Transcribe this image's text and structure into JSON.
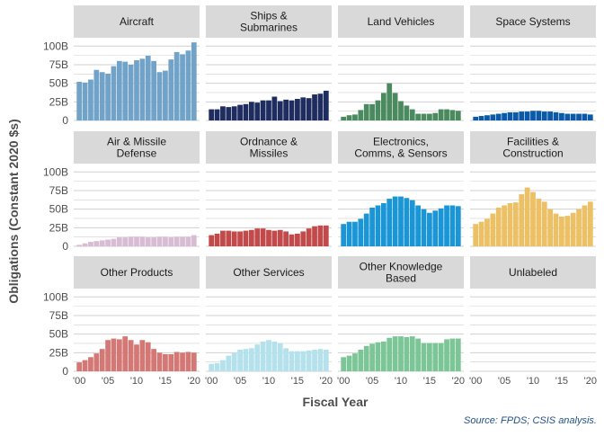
{
  "chart_data": {
    "type": "bar",
    "layout": "facet-grid-3x4",
    "ylabel": "Obligations (Constant 2020 $s)",
    "xlabel": "Fiscal Year",
    "source": "Source: FPDS; CSIS analysis.",
    "ylim": [
      0,
      110
    ],
    "y_ticks": [
      0,
      25,
      50,
      75,
      100
    ],
    "y_tick_labels": [
      "0",
      "25B",
      "50B",
      "75B",
      "100B"
    ],
    "x": [
      2000,
      2001,
      2002,
      2003,
      2004,
      2005,
      2006,
      2007,
      2008,
      2009,
      2010,
      2011,
      2012,
      2013,
      2014,
      2015,
      2016,
      2017,
      2018,
      2019,
      2020
    ],
    "x_ticks": [
      2000,
      2005,
      2010,
      2015,
      2020
    ],
    "x_tick_labels": [
      "'00",
      "'05",
      "'10",
      "'15",
      "'20"
    ],
    "grid": true,
    "facets": [
      {
        "title": [
          "Aircraft"
        ],
        "color": "#71a3c8",
        "values": [
          52,
          51,
          55,
          68,
          65,
          63,
          73,
          80,
          79,
          75,
          81,
          83,
          87,
          80,
          65,
          67,
          82,
          92,
          89,
          94,
          105
        ]
      },
      {
        "title": [
          "Ships &",
          "Submarines"
        ],
        "color": "#1e2c5f",
        "values": [
          15,
          15,
          19,
          18,
          19,
          21,
          22,
          25,
          24,
          27,
          27,
          32,
          26,
          28,
          27,
          29,
          31,
          30,
          35,
          36,
          40
        ]
      },
      {
        "title": [
          "Land Vehicles"
        ],
        "color": "#4b8a5f",
        "values": [
          5,
          7,
          8,
          14,
          22,
          22,
          27,
          37,
          50,
          37,
          26,
          20,
          15,
          9,
          9,
          9,
          10,
          15,
          15,
          14,
          13
        ]
      },
      {
        "title": [
          "Space Systems"
        ],
        "color": "#0b5aa8",
        "values": [
          5,
          6,
          7,
          8,
          9,
          10,
          11,
          11,
          12,
          12,
          13,
          13,
          12,
          12,
          11,
          10,
          9,
          9,
          9,
          9,
          8
        ]
      },
      {
        "title": [
          "Air & Missile",
          "Defense"
        ],
        "color": "#d8bcd4",
        "values": [
          2,
          4,
          6,
          7,
          8,
          9,
          10,
          12,
          12,
          13,
          13,
          13,
          12,
          12,
          13,
          13,
          12,
          13,
          13,
          13,
          15
        ]
      },
      {
        "title": [
          "Ordnance &",
          "Missiles"
        ],
        "color": "#c24a4a",
        "values": [
          15,
          17,
          21,
          21,
          20,
          20,
          21,
          22,
          24,
          24,
          22,
          21,
          22,
          20,
          16,
          17,
          20,
          24,
          27,
          28,
          28
        ]
      },
      {
        "title": [
          "Electronics,",
          "Comms, & Sensors"
        ],
        "color": "#1a96d6",
        "values": [
          30,
          33,
          33,
          37,
          44,
          52,
          55,
          58,
          64,
          67,
          67,
          65,
          62,
          55,
          50,
          45,
          48,
          51,
          55,
          55,
          54
        ]
      },
      {
        "title": [
          "Facilities &",
          "Construction"
        ],
        "color": "#ecc064",
        "values": [
          30,
          33,
          37,
          44,
          52,
          55,
          58,
          59,
          70,
          79,
          73,
          64,
          60,
          50,
          44,
          40,
          41,
          45,
          50,
          55,
          60
        ]
      },
      {
        "title": [
          "Other Products"
        ],
        "color": "#d47876",
        "values": [
          12,
          15,
          19,
          24,
          30,
          42,
          44,
          43,
          47,
          42,
          36,
          42,
          39,
          30,
          25,
          23,
          23,
          26,
          25,
          26,
          25
        ]
      },
      {
        "title": [
          "Other Services"
        ],
        "color": "#b4e1ec",
        "values": [
          10,
          11,
          15,
          21,
          25,
          29,
          30,
          31,
          36,
          40,
          42,
          40,
          38,
          31,
          27,
          27,
          27,
          28,
          29,
          30,
          29
        ]
      },
      {
        "title": [
          "Other Knowledge",
          "Based"
        ],
        "color": "#7cc597",
        "values": [
          19,
          21,
          24,
          29,
          34,
          37,
          39,
          40,
          45,
          47,
          47,
          46,
          47,
          44,
          38,
          38,
          38,
          38,
          43,
          44,
          44
        ]
      },
      {
        "title": [
          "Unlabeled"
        ],
        "color": "#cccccc",
        "values": []
      }
    ]
  }
}
